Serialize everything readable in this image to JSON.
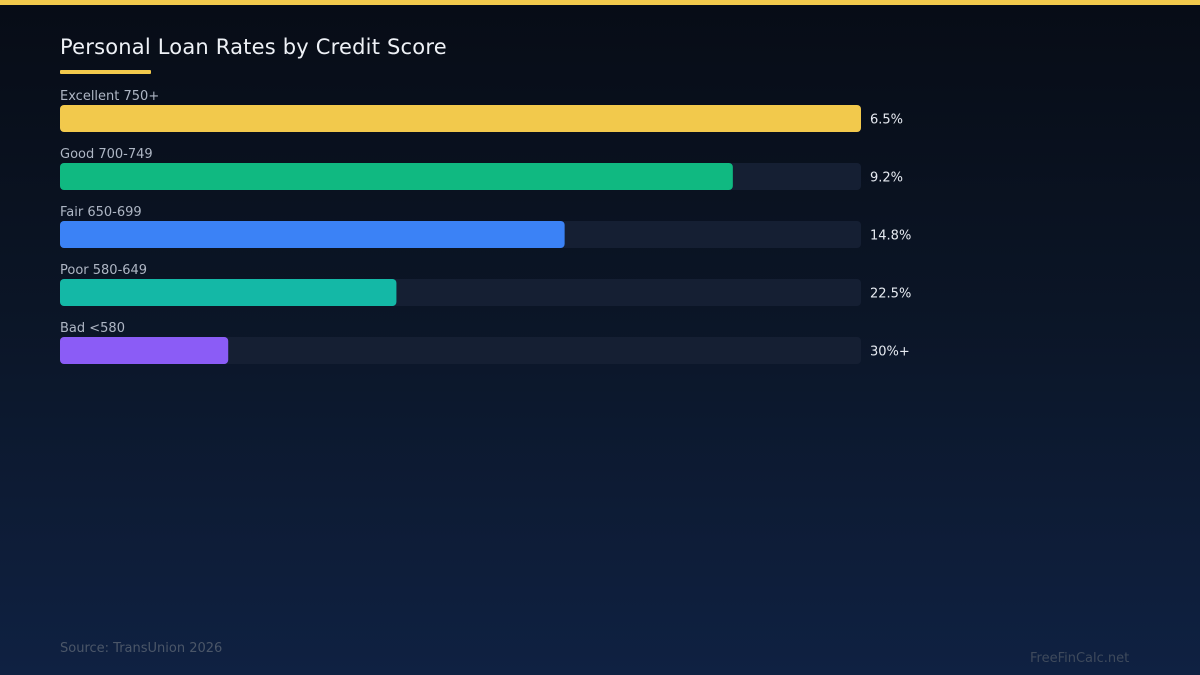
{
  "header": {
    "title": "Personal Loan Rates by Credit Score"
  },
  "chart_data": {
    "type": "bar",
    "orientation": "horizontal",
    "title": "Personal Loan Rates by Credit Score",
    "categories": [
      "Excellent 750+",
      "Good 700-749",
      "Fair 650-699",
      "Poor 580-649",
      "Bad <580"
    ],
    "values": [
      6.5,
      9.2,
      14.8,
      22.5,
      30
    ],
    "value_labels": [
      "6.5%",
      "9.2%",
      "14.8%",
      "22.5%",
      "30%+"
    ],
    "relative_bar_fill": [
      1.0,
      0.84,
      0.63,
      0.42,
      0.21
    ],
    "colors": [
      "#f2c94c",
      "#10b981",
      "#3b82f6",
      "#14b8a6",
      "#8b5cf6"
    ],
    "track_color": "#151f33",
    "grid": false,
    "legend": "none"
  },
  "footer": {
    "source": "Source: TransUnion 2026",
    "brand": "FreeFinCalc.net"
  },
  "theme": {
    "accent": "#f2c94c",
    "background": "#0b1526"
  }
}
